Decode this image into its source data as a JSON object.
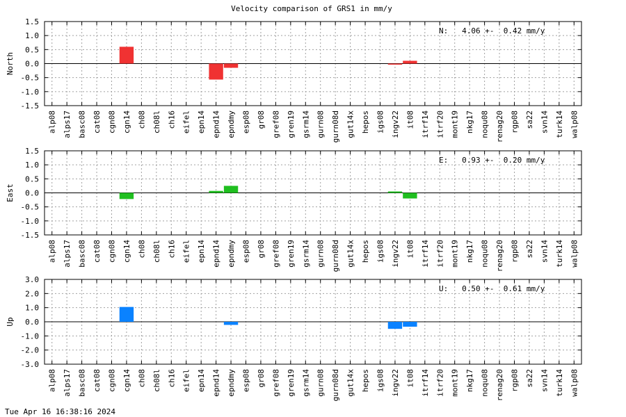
{
  "chart_data": {
    "title": "Velocity comparison of GRS1 in mm/y",
    "type": "bar",
    "categories": [
      "alp08",
      "alps17",
      "basc08",
      "cat08",
      "cgn08",
      "cgn14",
      "ch08",
      "ch08l",
      "ch16",
      "eifel",
      "epn14",
      "epnd14",
      "epndmy",
      "esp08",
      "gr08",
      "gref08",
      "gren19",
      "gsrm14",
      "gurn08",
      "gurn08d",
      "gut14x",
      "hepos",
      "igs08",
      "ingv22",
      "it08",
      "itrf14",
      "itrf20",
      "mont19",
      "nkg17",
      "noqu08",
      "renag20",
      "rgp08",
      "sa22",
      "svn14",
      "turk14",
      "walp08"
    ],
    "panels": [
      {
        "ylabel": "North",
        "color": "#f03232",
        "ylim": [
          -1.5,
          1.5
        ],
        "yticks": [
          "1.5",
          "1.0",
          "0.5",
          "0.0",
          "-0.5",
          "-1.0",
          "-1.5"
        ],
        "annotation": "N:   4.06 +-  0.42 mm/y",
        "values": {
          "cgn14": 0.6,
          "epnd14": -0.57,
          "epndmy": -0.15,
          "ingv22": -0.02,
          "it08": 0.1
        }
      },
      {
        "ylabel": "East",
        "color": "#1fbf1f",
        "ylim": [
          -1.5,
          1.5
        ],
        "yticks": [
          "1.5",
          "1.0",
          "0.5",
          "0.0",
          "-0.5",
          "-1.0",
          "-1.5"
        ],
        "annotation": "E:   0.93 +-  0.20 mm/y",
        "values": {
          "cgn14": -0.22,
          "epnd14": 0.07,
          "epndmy": 0.25,
          "ingv22": 0.05,
          "it08": -0.2
        }
      },
      {
        "ylabel": "Up",
        "color": "#0a82ff",
        "ylim": [
          -3,
          3
        ],
        "yticks": [
          "3.0",
          "2.0",
          "1.0",
          "0.0",
          "-1.0",
          "-2.0",
          "-3.0"
        ],
        "annotation": "U:   0.50 +-  0.61 mm/y",
        "values": {
          "cgn14": 1.05,
          "epndmy": -0.22,
          "ingv22": -0.5,
          "it08": -0.35
        }
      }
    ],
    "grid": true
  },
  "timestamp": "Tue Apr 16 16:38:16 2024"
}
